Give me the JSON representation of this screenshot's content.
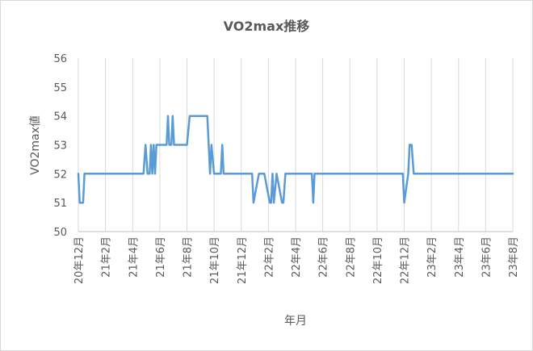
{
  "chart_data": {
    "type": "line",
    "title": "VO2max推移",
    "xlabel": "年月",
    "ylabel": "VO2max値",
    "ylim": [
      50,
      56
    ],
    "y_ticks": [
      "50",
      "51",
      "52",
      "53",
      "54",
      "55",
      "56"
    ],
    "x_ticks": [
      "20年12月",
      "21年2月",
      "21年4月",
      "21年6月",
      "21年8月",
      "21年10月",
      "21年12月",
      "22年2月",
      "22年4月",
      "22年6月",
      "22年8月",
      "22年10月",
      "22年12月",
      "23年2月",
      "23年4月",
      "23年6月",
      "23年8月"
    ],
    "grid": "vertical",
    "series": [
      {
        "color": "#5b9bd5",
        "x": [
          0,
          0.1,
          0.2,
          0.35,
          0.45,
          3,
          4.8,
          4.95,
          5.1,
          5.25,
          5.35,
          5.45,
          5.55,
          5.65,
          5.75,
          6.5,
          6.6,
          6.7,
          6.85,
          6.95,
          7.05,
          7.5,
          8,
          8.2,
          9.5,
          9.6,
          9.7,
          9.8,
          10,
          10.5,
          10.6,
          10.7,
          11.5,
          12.8,
          12.9,
          13.3,
          13.7,
          14.1,
          14.2,
          14.3,
          14.4,
          14.6,
          15,
          15.1,
          15.25,
          16,
          17.2,
          17.3,
          17.4,
          17.9,
          18,
          18.1,
          19,
          23.9,
          24,
          24.3,
          24.4,
          24.55,
          24.7,
          24.8,
          26,
          32
        ],
        "y": [
          52,
          51,
          51,
          51,
          52,
          52,
          52,
          53,
          52,
          52,
          53,
          52,
          53,
          52,
          53,
          53,
          54,
          53,
          53,
          54,
          53,
          53,
          53,
          54,
          54,
          53,
          52,
          53,
          52,
          52,
          53,
          52,
          52,
          52,
          51,
          52,
          52,
          51,
          51,
          52,
          51,
          52,
          51,
          51,
          52,
          52,
          52,
          51,
          52,
          52,
          52,
          52,
          52,
          52,
          51,
          52,
          53,
          53,
          52,
          52,
          52,
          52
        ]
      }
    ]
  }
}
